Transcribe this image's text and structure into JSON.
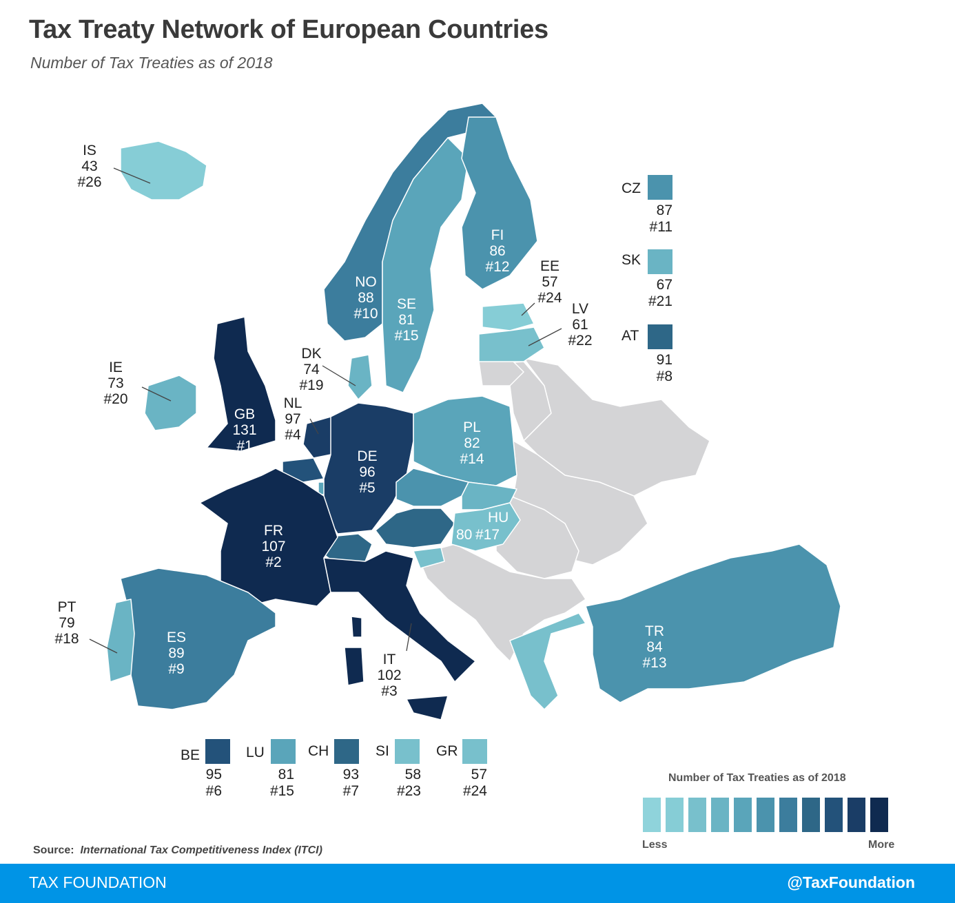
{
  "title": "Tax Treaty Network of European Countries",
  "subtitle": "Number of Tax Treaties as of 2018",
  "source_label": "Source:",
  "source_text": "International Tax Competitiveness Index (ITCI)",
  "footer_left": "TAX FOUNDATION",
  "footer_right": "@TaxFoundation",
  "legend": {
    "title": "Number of Tax Treaties as of 2018",
    "less": "Less",
    "more": "More",
    "colors": [
      "#8fd3db",
      "#86cdd6",
      "#78c0cc",
      "#6ab4c4",
      "#5aa5ba",
      "#4b93ad",
      "#3c7d9d",
      "#2e6787",
      "#23527a",
      "#1a3d66",
      "#0f2a50"
    ]
  },
  "colors": {
    "nodata": "#d4d4d6",
    "border": "#ffffff"
  },
  "countries": [
    {
      "code": "IS",
      "treaties": "43",
      "rank": "#26",
      "color": "#86cdd6"
    },
    {
      "code": "IE",
      "treaties": "73",
      "rank": "#20",
      "color": "#6ab4c4"
    },
    {
      "code": "GB",
      "treaties": "131",
      "rank": "#1",
      "color": "#0f2a50"
    },
    {
      "code": "NO",
      "treaties": "88",
      "rank": "#10",
      "color": "#3c7d9d"
    },
    {
      "code": "SE",
      "treaties": "81",
      "rank": "#15",
      "color": "#5aa5ba"
    },
    {
      "code": "FI",
      "treaties": "86",
      "rank": "#12",
      "color": "#4b93ad"
    },
    {
      "code": "EE",
      "treaties": "57",
      "rank": "#24",
      "color": "#86cdd6"
    },
    {
      "code": "LV",
      "treaties": "61",
      "rank": "#22",
      "color": "#78c0cc"
    },
    {
      "code": "DK",
      "treaties": "74",
      "rank": "#19",
      "color": "#6ab4c4"
    },
    {
      "code": "NL",
      "treaties": "97",
      "rank": "#4",
      "color": "#1a3d66"
    },
    {
      "code": "DE",
      "treaties": "96",
      "rank": "#5",
      "color": "#1a3d66"
    },
    {
      "code": "PL",
      "treaties": "82",
      "rank": "#14",
      "color": "#5aa5ba"
    },
    {
      "code": "HU",
      "treaties": "80",
      "rank": "#17",
      "color": "#78c0cc"
    },
    {
      "code": "FR",
      "treaties": "107",
      "rank": "#2",
      "color": "#0f2a50"
    },
    {
      "code": "PT",
      "treaties": "79",
      "rank": "#18",
      "color": "#6ab4c4"
    },
    {
      "code": "ES",
      "treaties": "89",
      "rank": "#9",
      "color": "#3c7d9d"
    },
    {
      "code": "IT",
      "treaties": "102",
      "rank": "#3",
      "color": "#0f2a50"
    },
    {
      "code": "TR",
      "treaties": "84",
      "rank": "#13",
      "color": "#4b93ad"
    },
    {
      "code": "CZ",
      "treaties": "87",
      "rank": "#11",
      "color": "#4b93ad"
    },
    {
      "code": "SK",
      "treaties": "67",
      "rank": "#21",
      "color": "#6ab4c4"
    },
    {
      "code": "AT",
      "treaties": "91",
      "rank": "#8",
      "color": "#2e6787"
    },
    {
      "code": "BE",
      "treaties": "95",
      "rank": "#6",
      "color": "#23527a"
    },
    {
      "code": "LU",
      "treaties": "81",
      "rank": "#15",
      "color": "#5aa5ba"
    },
    {
      "code": "CH",
      "treaties": "93",
      "rank": "#7",
      "color": "#2e6787"
    },
    {
      "code": "SI",
      "treaties": "58",
      "rank": "#23",
      "color": "#78c0cc"
    },
    {
      "code": "GR",
      "treaties": "57",
      "rank": "#24",
      "color": "#78c0cc"
    }
  ]
}
